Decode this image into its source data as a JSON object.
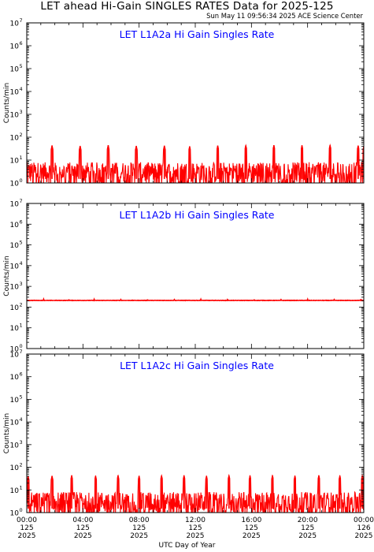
{
  "page": {
    "title": "LET ahead Hi-Gain SINGLES RATES Data for 2025-125",
    "timestamp": "Sun May 11 09:56:34 2025 ACE Science Center"
  },
  "chart_data": [
    {
      "type": "line",
      "title": "LET L1A2a Hi Gain Singles Rate",
      "ylabel": "Counts/min",
      "yscale": "log",
      "ylim": [
        1,
        10000000
      ],
      "xlim": [
        0,
        24
      ],
      "x_unit": "hours UTC, day 125",
      "series": [
        {
          "color": "#ff0000",
          "baseline": "noisy 1-8 counts/min",
          "spikes": {
            "x": [
              1.8,
              3.8,
              5.8,
              7.8,
              9.8,
              11.6,
              13.6,
              15.6,
              17.6,
              19.6,
              21.6,
              23.6,
              24.0
            ],
            "y": [
              44,
              42,
              45,
              42,
              43,
              40,
              43,
              44,
              45,
              44,
              45,
              43,
              40
            ]
          }
        }
      ]
    },
    {
      "type": "line",
      "title": "LET L1A2b Hi Gain Singles Rate",
      "ylabel": "Counts/min",
      "yscale": "log",
      "ylim": [
        1,
        10000000
      ],
      "xlim": [
        0,
        24
      ],
      "x_unit": "hours UTC, day 125",
      "series": [
        {
          "color": "#ff0000",
          "baseline": "flat about 210 counts/min",
          "spikes": {
            "x": [
              1.2,
              3.0,
              4.8,
              6.7,
              8.6,
              10.5,
              12.4,
              14.3,
              16.2,
              18.1,
              20.0,
              21.9,
              23.8
            ],
            "y": [
              240,
              238,
              236,
              238,
              236,
              238,
              236,
              238,
              236,
              238,
              236,
              238,
              245
            ]
          }
        }
      ]
    },
    {
      "type": "line",
      "title": "LET L1A2c Hi Gain Singles Rate",
      "ylabel": "Counts/min",
      "yscale": "log",
      "ylim": [
        1,
        10000000
      ],
      "xlim": [
        0,
        24
      ],
      "x_unit": "hours UTC, day 125",
      "series": [
        {
          "color": "#ff0000",
          "baseline": "noisy 1-8 counts/min",
          "spikes": {
            "x": [
              0.1,
              1.8,
              3.2,
              4.9,
              6.5,
              8.0,
              9.6,
              11.2,
              12.8,
              14.4,
              15.9,
              17.5,
              19.1,
              20.8,
              22.3,
              23.9
            ],
            "y": [
              40,
              42,
              44,
              42,
              44,
              42,
              43,
              44,
              42,
              44,
              43,
              44,
              42,
              44,
              43,
              44
            ]
          }
        }
      ]
    }
  ],
  "y_tick_labels": [
    {
      "base": "10",
      "exp": "0"
    },
    {
      "base": "10",
      "exp": "1"
    },
    {
      "base": "10",
      "exp": "2"
    },
    {
      "base": "10",
      "exp": "3"
    },
    {
      "base": "10",
      "exp": "4"
    },
    {
      "base": "10",
      "exp": "5"
    },
    {
      "base": "10",
      "exp": "6"
    },
    {
      "base": "10",
      "exp": "7"
    }
  ],
  "x_axis": {
    "label": "UTC Day of Year",
    "ticks": [
      {
        "time": "00:00",
        "day": "125",
        "year": "2025"
      },
      {
        "time": "04:00",
        "day": "125",
        "year": "2025"
      },
      {
        "time": "08:00",
        "day": "125",
        "year": "2025"
      },
      {
        "time": "12:00",
        "day": "125",
        "year": "2025"
      },
      {
        "time": "16:00",
        "day": "125",
        "year": "2025"
      },
      {
        "time": "20:00",
        "day": "125",
        "year": "2025"
      },
      {
        "time": "00:00",
        "day": "126",
        "year": "2025"
      }
    ]
  },
  "colors": {
    "data": "#ff0000",
    "panel_title": "#0000ff",
    "axes": "#000000"
  }
}
